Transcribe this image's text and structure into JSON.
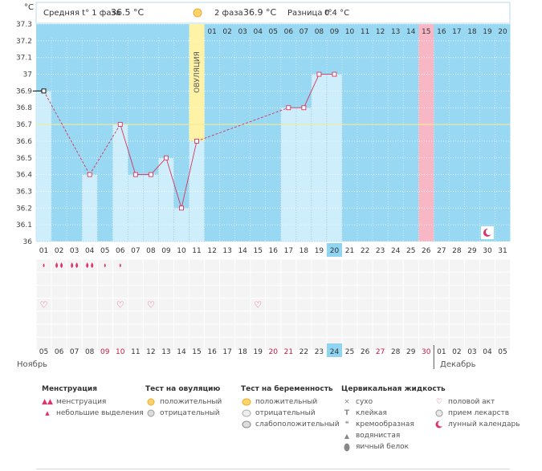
{
  "header": {
    "phase1_label": "Средняя t° 1 фаза",
    "phase1_value": "36.5 °C",
    "phase2_label": "2 фаза",
    "phase2_value": "36.9 °C",
    "diff_label": "Разница t°",
    "diff_value": "0.4 °C",
    "unit": "°C"
  },
  "ovulation_label": "ОВУЛЯЦИЯ",
  "chart_data": {
    "type": "bar",
    "title": "",
    "ylabel": "°C",
    "ylim": [
      36,
      37.3
    ],
    "yticks": [
      "36",
      "36.1",
      "36.2",
      "36.3",
      "36.4",
      "36.5",
      "36.6",
      "36.7",
      "36.8",
      "36.9",
      "37",
      "37.1",
      "37.2",
      "37.3"
    ],
    "cycle_days": [
      "01",
      "02",
      "03",
      "04",
      "05",
      "06",
      "07",
      "08",
      "09",
      "10",
      "11",
      "12",
      "13",
      "14",
      "15",
      "16",
      "17",
      "18",
      "19",
      "20",
      "21",
      "22",
      "23",
      "24",
      "25",
      "26",
      "27",
      "28",
      "29",
      "30",
      "31"
    ],
    "after_ovulation_days": [
      "01",
      "02",
      "03",
      "04",
      "05",
      "06",
      "07",
      "08",
      "09",
      "10",
      "11",
      "12",
      "13",
      "14",
      "15",
      "16",
      "17",
      "18",
      "19",
      "20"
    ],
    "highlight_day": "20",
    "temps": [
      36.9,
      null,
      null,
      36.4,
      null,
      36.7,
      36.4,
      36.4,
      36.5,
      36.2,
      36.6,
      null,
      null,
      null,
      null,
      null,
      36.8,
      36.8,
      37.0,
      37.0,
      null,
      null,
      null,
      null,
      null,
      null,
      null,
      null,
      null,
      null,
      null
    ],
    "threshold": 36.7,
    "ovulation_day": 11,
    "marked_day_index": 26,
    "dates": [
      "05",
      "06",
      "07",
      "08",
      "09",
      "10",
      "11",
      "12",
      "13",
      "14",
      "15",
      "16",
      "17",
      "18",
      "19",
      "20",
      "21",
      "22",
      "23",
      "24",
      "25",
      "26",
      "27",
      "28",
      "29",
      "30",
      "01",
      "02",
      "03",
      "04",
      "05"
    ],
    "red_dates": [
      4,
      5,
      15,
      16,
      22,
      25
    ],
    "highlight_date_index": 19,
    "month_left": "Ноябрь",
    "month_right": "Декабрь",
    "menstruation": [
      {
        "day": 1,
        "type": "small"
      },
      {
        "day": 2,
        "type": "heavy"
      },
      {
        "day": 3,
        "type": "heavy"
      },
      {
        "day": 4,
        "type": "heavy"
      },
      {
        "day": 5,
        "type": "small"
      },
      {
        "day": 6,
        "type": "small"
      }
    ],
    "intercourse_days": [
      1,
      6,
      8,
      15
    ],
    "lunar_day": 30
  },
  "legend": {
    "menstruation": {
      "title": "Менструация",
      "items": [
        "менструация",
        "небольшие выделения"
      ]
    },
    "ovulation_test": {
      "title": "Тест на овуляцию",
      "items": [
        "положительный",
        "отрицательный"
      ]
    },
    "pregnancy_test": {
      "title": "Тест на беременность",
      "items": [
        "положительный",
        "отрицательный",
        "слабоположительный"
      ]
    },
    "cervical": {
      "title": "Цервикальная жидкость",
      "items": [
        "сухо",
        "клейкая",
        "кремообразная",
        "водянистая",
        "яичный белок"
      ]
    },
    "other": {
      "items": [
        "половой акт",
        "прием лекарств",
        "лунный календарь"
      ]
    }
  },
  "colors": {
    "bg_blue": "#98d8f2",
    "bar_fill": "#cfeefb",
    "bar_border": "#9fd0ea",
    "line": "#d9335b",
    "ovulation": "#fdf2a6",
    "marked": "#f8b7c5",
    "highlight": "#8fd4f0",
    "red_text": "#c8173f",
    "threshold": "#f2ec9a"
  }
}
